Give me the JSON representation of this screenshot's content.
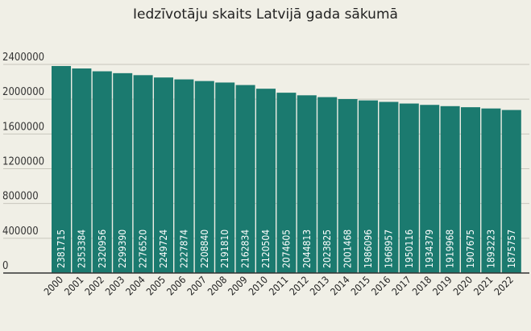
{
  "chart_data": {
    "type": "bar",
    "title": "Iedzīvotāju skaits Latvijā gada sākumā",
    "xlabel": "",
    "ylabel": "",
    "ylim": [
      0,
      2400000
    ],
    "yticks": [
      "0",
      "400000",
      "800000",
      "1200000",
      "1600000",
      "2000000",
      "2400000"
    ],
    "grid": true,
    "categories": [
      "2000",
      "2001",
      "2002",
      "2003",
      "2004",
      "2005",
      "2006",
      "2007",
      "2008",
      "2009",
      "2010",
      "2011",
      "2012",
      "2013",
      "2014",
      "2015",
      "2016",
      "2017",
      "2018",
      "2019",
      "2020",
      "2021",
      "2022"
    ],
    "values": [
      2381715,
      2353384,
      2320956,
      2299390,
      2276520,
      2249724,
      2227874,
      2208840,
      2191810,
      2162834,
      2120504,
      2074605,
      2044813,
      2023825,
      2001468,
      1986096,
      1968957,
      1950116,
      1934379,
      1919968,
      1907675,
      1893223,
      1875757
    ],
    "bar_color": "#1b7a6f",
    "label_color": "#ffffff",
    "grid_color": "#c8c6bc"
  }
}
